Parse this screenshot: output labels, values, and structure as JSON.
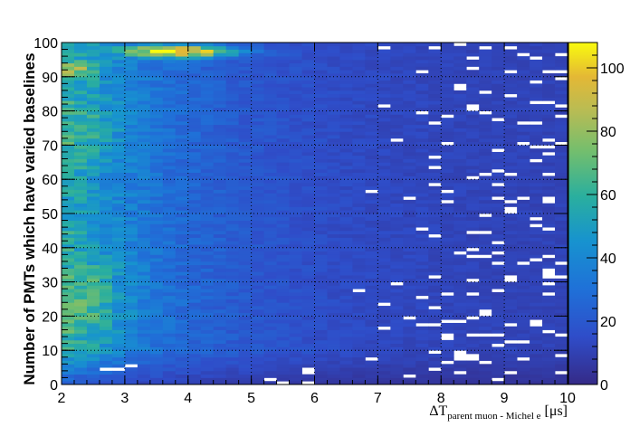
{
  "chart_data": {
    "type": "heatmap",
    "title": "",
    "xlabel_main": "ΔT",
    "xlabel_sub": "parent muon - Michel e",
    "xlabel_unit": " [μs]",
    "ylabel": "Number of PMTs which have varied baselines",
    "xlim": [
      2,
      10
    ],
    "ylim": [
      0,
      100
    ],
    "zlim": [
      0,
      108
    ],
    "x_ticks": [
      "2",
      "3",
      "4",
      "5",
      "6",
      "7",
      "8",
      "9",
      "10"
    ],
    "y_ticks": [
      "0",
      "10",
      "20",
      "30",
      "40",
      "50",
      "60",
      "70",
      "80",
      "90",
      "100"
    ],
    "z_ticks": [
      "0",
      "20",
      "40",
      "60",
      "80",
      "100"
    ],
    "grid": "dotted",
    "colormap": "parula",
    "bins": {
      "x": 40,
      "y": 100
    },
    "description_of_density": "Highest counts near x=3.5-4.5, y=95-99 (~100); secondary concentration along x=2-3 for y=10-90 (~30-60); counts decay with increasing x; sparse/empty bins (white) for x>7."
  }
}
